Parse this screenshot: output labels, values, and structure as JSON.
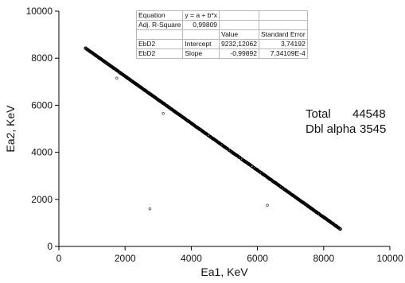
{
  "chart_data": {
    "type": "scatter",
    "xlabel": "Ea1, KeV",
    "ylabel": "Ea2, KeV",
    "xlim": [
      0,
      10000
    ],
    "ylim": [
      0,
      10000
    ],
    "x_ticks": [
      "0",
      "2000",
      "4000",
      "6000",
      "8000",
      "10000"
    ],
    "y_ticks": [
      "0",
      "2000",
      "4000",
      "6000",
      "8000",
      "10000"
    ],
    "grid": false,
    "series": [
      {
        "marker": "small open circle",
        "color": "#000000",
        "line_points": [
          {
            "x": 800,
            "y": 8432
          },
          {
            "x": 8500,
            "y": 742
          }
        ],
        "outliers": [
          {
            "x": 1750,
            "y": 7150
          },
          {
            "x": 3150,
            "y": 5650
          },
          {
            "x": 2750,
            "y": 1600
          },
          {
            "x": 6300,
            "y": 1750
          }
        ]
      }
    ],
    "annotations": [
      {
        "label": "Total",
        "value": "44548"
      },
      {
        "label": "Dbl alpha",
        "value": "3545"
      }
    ],
    "fit_table": {
      "rows": [
        [
          "Equation",
          "y = a + b*x",
          "",
          ""
        ],
        [
          "Adj. R-Square",
          "0,99809",
          "",
          ""
        ],
        [
          "",
          "",
          "Value",
          "Standard Error"
        ],
        [
          "EbD2",
          "Intercept",
          "9232,12062",
          "3,74192"
        ],
        [
          "EbD2",
          "Slope",
          "-0,99892",
          "7,34109E-4"
        ]
      ]
    }
  }
}
